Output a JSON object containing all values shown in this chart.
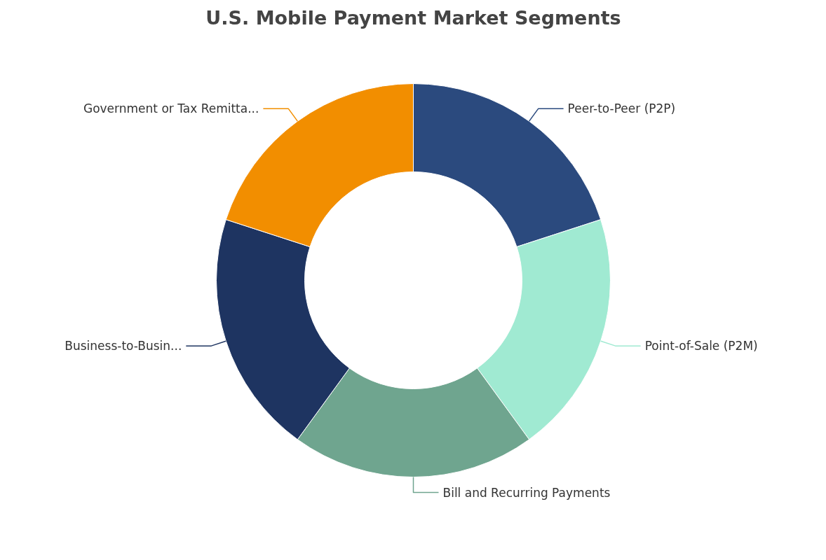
{
  "chart_data": {
    "type": "donut",
    "title": "U.S. Mobile Payment Market Segments",
    "categories": [
      "Peer-to-Peer (P2P)",
      "Point-of-Sale (P2M)",
      "Bill and Recurring Payments",
      "Business-to-Busin...",
      "Government or Tax Remitta..."
    ],
    "values": [
      20,
      20,
      20,
      20,
      20
    ],
    "colors": [
      "#2b4a7e",
      "#a0ead2",
      "#6fa58f",
      "#1e3461",
      "#f28e00"
    ],
    "legend": false
  }
}
